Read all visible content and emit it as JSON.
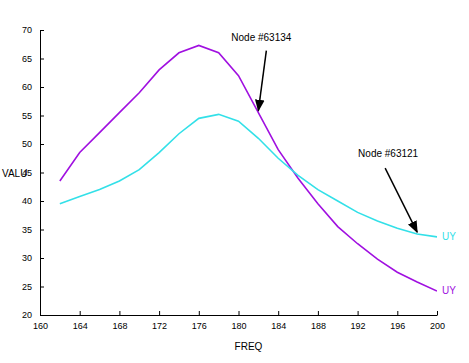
{
  "chart_data": {
    "type": "line",
    "xlabel": "FREQ",
    "ylabel": "VALU",
    "x": [
      162,
      164,
      166,
      168,
      170,
      172,
      174,
      176,
      178,
      180,
      182,
      184,
      186,
      188,
      190,
      192,
      194,
      196,
      198,
      200
    ],
    "series": [
      {
        "name": "UY",
        "color": "#a010e0",
        "values": [
          43.5,
          48.5,
          52,
          55.5,
          59,
          63,
          66,
          67.3,
          66,
          62,
          55.5,
          49,
          44,
          39.5,
          35.5,
          32.5,
          29.8,
          27.5,
          25.8,
          24.2
        ]
      },
      {
        "name": "UY",
        "color": "#33e0e8",
        "values": [
          39.5,
          40.8,
          42,
          43.5,
          45.5,
          48.5,
          51.8,
          54.5,
          55.2,
          54,
          51,
          47.5,
          44.5,
          42,
          40,
          38,
          36.5,
          35.2,
          34.2,
          33.7
        ]
      }
    ],
    "xlim": [
      160,
      200
    ],
    "ylim": [
      20,
      70
    ],
    "xticks": [
      160,
      164,
      168,
      172,
      176,
      180,
      184,
      188,
      192,
      196,
      200
    ],
    "yticks": [
      20,
      25,
      30,
      35,
      40,
      45,
      50,
      55,
      60,
      65,
      70
    ],
    "annotations": [
      {
        "text": "Node #63134"
      },
      {
        "text": "Node #63121"
      }
    ],
    "grid": false
  }
}
